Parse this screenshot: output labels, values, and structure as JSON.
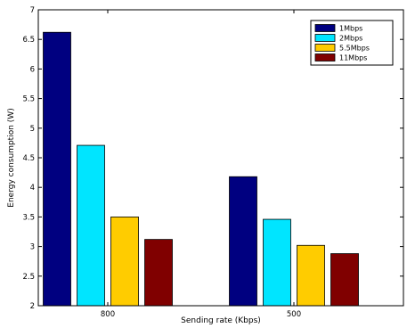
{
  "chart_data": {
    "type": "bar",
    "xlabel": "Sending rate (Kbps)",
    "ylabel": "Energy consumption (W)",
    "ylim": [
      2,
      7
    ],
    "yticks": [
      2,
      2.5,
      3,
      3.5,
      4,
      4.5,
      5,
      5.5,
      6,
      6.5,
      7
    ],
    "ytick_labels": [
      "2",
      "2.5",
      "3",
      "3.5",
      "4",
      "4.5",
      "5",
      "5.5",
      "6",
      "6.5",
      "7"
    ],
    "categories": [
      "800",
      "500"
    ],
    "series": [
      {
        "name": "1Mbps",
        "color": "#000080",
        "values": [
          6.62,
          4.18
        ]
      },
      {
        "name": "2Mbps",
        "color": "#00e5ff",
        "values": [
          4.71,
          3.46
        ]
      },
      {
        "name": "5.5Mbps",
        "color": "#ffcc00",
        "values": [
          3.5,
          3.02
        ]
      },
      {
        "name": "11Mbps",
        "color": "#800000",
        "values": [
          3.12,
          2.88
        ]
      }
    ],
    "legend_position": "top-right",
    "grid": false
  }
}
